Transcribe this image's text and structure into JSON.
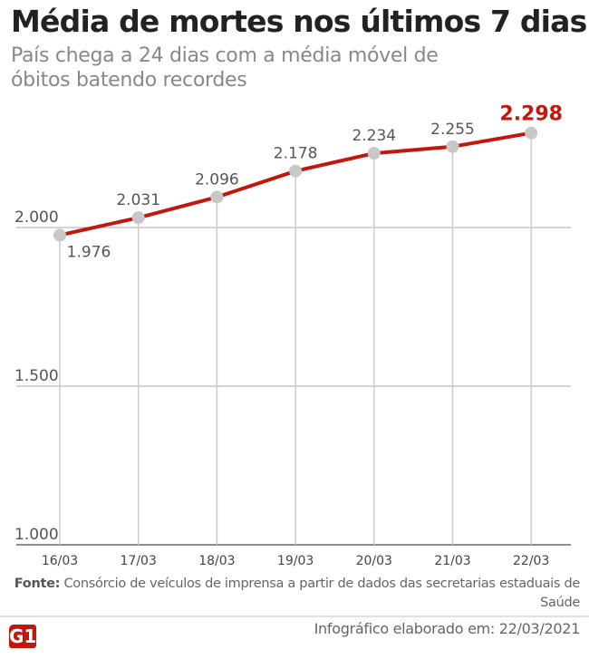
{
  "header": {
    "title": "Média de mortes nos últimos 7 dias",
    "subtitle": "País chega a 24 dias com a média móvel de óbitos batendo recordes"
  },
  "chart_data": {
    "type": "line",
    "title": "Média de mortes nos últimos 7 dias",
    "categories": [
      "16/03",
      "17/03",
      "18/03",
      "19/03",
      "20/03",
      "21/03",
      "22/03"
    ],
    "values": [
      1976,
      2031,
      2096,
      2178,
      2234,
      2255,
      2298
    ],
    "value_labels": [
      "1.976",
      "2.031",
      "2.096",
      "2.178",
      "2.234",
      "2.255",
      "2.298"
    ],
    "yticks": [
      1000,
      1500,
      2000
    ],
    "ytick_labels": [
      "1.000",
      "1.500",
      "2.000"
    ],
    "ylim": [
      1000,
      2400
    ],
    "grid": true,
    "colors": {
      "line": "#c4170c",
      "point": "#c8c8c8",
      "highlight": "#c4170c"
    }
  },
  "footer": {
    "source_label": "Fonte:",
    "source_text": "Consórcio de veículos de imprensa a partir de dados das secretarias estaduais de Saúde",
    "logo": "G1",
    "credit": "Infográfico elaborado em: 22/03/2021"
  }
}
